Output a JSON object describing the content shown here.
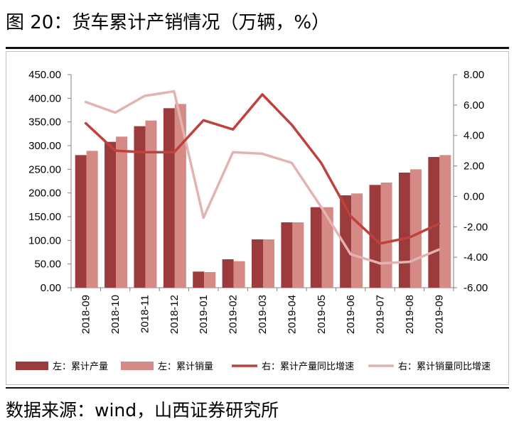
{
  "header": {
    "title": "图 20：货车累计产销情况（万辆，%）"
  },
  "footer": {
    "source": "数据来源：wind，山西证券研究所"
  },
  "chart_data": {
    "type": "bar",
    "categories": [
      "2018-09",
      "2018-10",
      "2018-11",
      "2018-12",
      "2019-01",
      "2019-02",
      "2019-03",
      "2019-04",
      "2019-05",
      "2019-06",
      "2019-07",
      "2019-08",
      "2019-09"
    ],
    "left_axis": {
      "ylim": [
        0,
        450
      ],
      "ticks": [
        "0.00",
        "50.00",
        "100.00",
        "150.00",
        "200.00",
        "250.00",
        "300.00",
        "350.00",
        "400.00",
        "450.00"
      ]
    },
    "right_axis": {
      "ylim": [
        -6,
        8
      ],
      "ticks": [
        "-6.00",
        "-4.00",
        "-2.00",
        "0.00",
        "2.00",
        "4.00",
        "6.00",
        "8.00"
      ]
    },
    "series": [
      {
        "name": "左：累计产量",
        "kind": "bar",
        "axis": "left",
        "color": "#9B3B3B",
        "values": [
          280,
          308,
          341,
          379,
          34,
          60,
          102,
          138,
          170,
          195,
          217,
          243,
          276
        ]
      },
      {
        "name": "左：累计销量",
        "kind": "bar",
        "axis": "left",
        "color": "#D58A86",
        "values": [
          289,
          319,
          353,
          388,
          33,
          56,
          102,
          138,
          170,
          199,
          222,
          250,
          280
        ]
      },
      {
        "name": "右：累计产量同比增速",
        "kind": "line",
        "axis": "right",
        "color": "#C0403C",
        "values": [
          4.8,
          3.0,
          2.9,
          2.9,
          5.0,
          4.4,
          6.7,
          4.7,
          2.2,
          -1.3,
          -3.1,
          -2.7,
          -1.8
        ]
      },
      {
        "name": "右：累计销量同比增速",
        "kind": "line",
        "axis": "right",
        "color": "#E2B4B0",
        "values": [
          6.2,
          5.5,
          6.6,
          6.9,
          -1.4,
          2.9,
          2.8,
          2.2,
          -0.7,
          -3.8,
          -4.4,
          -4.3,
          -3.5
        ]
      }
    ],
    "legend_position": "bottom"
  }
}
